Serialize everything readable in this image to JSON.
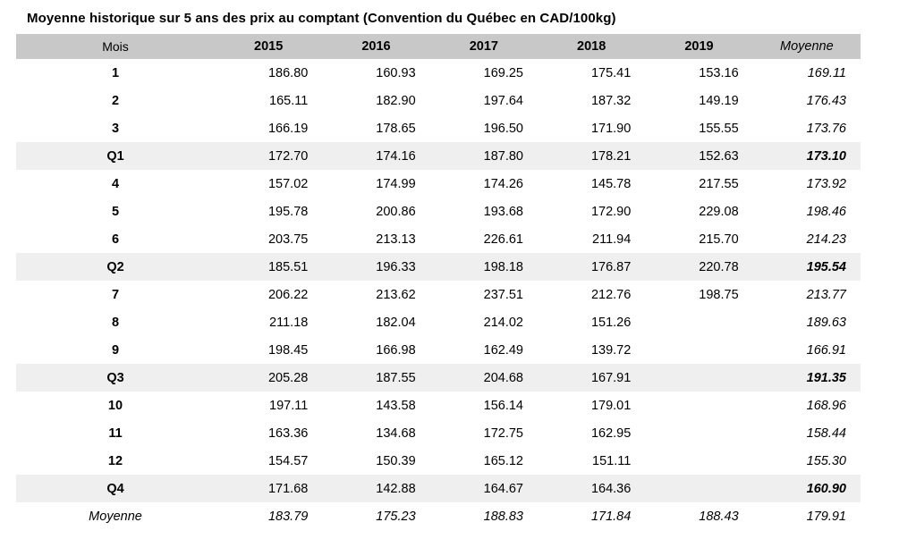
{
  "title": "Moyenne historique sur 5 ans des prix au comptant (Convention du Québec en CAD/100kg)",
  "colors": {
    "header_background": "#c8c8c8",
    "quarter_row_background": "#efefef"
  },
  "chart_data": {
    "type": "table",
    "title": "Moyenne historique sur 5 ans des prix au comptant (Convention du Québec en CAD/100kg)",
    "columns": [
      "Mois",
      "2015",
      "2016",
      "2017",
      "2018",
      "2019",
      "Moyenne"
    ],
    "rows": [
      {
        "label": "1",
        "kind": "month",
        "values": [
          "186.80",
          "160.93",
          "169.25",
          "175.41",
          "153.16",
          "169.11"
        ]
      },
      {
        "label": "2",
        "kind": "month",
        "values": [
          "165.11",
          "182.90",
          "197.64",
          "187.32",
          "149.19",
          "176.43"
        ]
      },
      {
        "label": "3",
        "kind": "month",
        "values": [
          "166.19",
          "178.65",
          "196.50",
          "171.90",
          "155.55",
          "173.76"
        ]
      },
      {
        "label": "Q1",
        "kind": "quarter",
        "values": [
          "172.70",
          "174.16",
          "187.80",
          "178.21",
          "152.63",
          "173.10"
        ]
      },
      {
        "label": "4",
        "kind": "month",
        "values": [
          "157.02",
          "174.99",
          "174.26",
          "145.78",
          "217.55",
          "173.92"
        ]
      },
      {
        "label": "5",
        "kind": "month",
        "values": [
          "195.78",
          "200.86",
          "193.68",
          "172.90",
          "229.08",
          "198.46"
        ]
      },
      {
        "label": "6",
        "kind": "month",
        "values": [
          "203.75",
          "213.13",
          "226.61",
          "211.94",
          "215.70",
          "214.23"
        ]
      },
      {
        "label": "Q2",
        "kind": "quarter",
        "values": [
          "185.51",
          "196.33",
          "198.18",
          "176.87",
          "220.78",
          "195.54"
        ]
      },
      {
        "label": "7",
        "kind": "month",
        "values": [
          "206.22",
          "213.62",
          "237.51",
          "212.76",
          "198.75",
          "213.77"
        ]
      },
      {
        "label": "8",
        "kind": "month",
        "values": [
          "211.18",
          "182.04",
          "214.02",
          "151.26",
          "",
          "189.63"
        ]
      },
      {
        "label": "9",
        "kind": "month",
        "values": [
          "198.45",
          "166.98",
          "162.49",
          "139.72",
          "",
          "166.91"
        ]
      },
      {
        "label": "Q3",
        "kind": "quarter",
        "values": [
          "205.28",
          "187.55",
          "204.68",
          "167.91",
          "",
          "191.35"
        ]
      },
      {
        "label": "10",
        "kind": "month",
        "values": [
          "197.11",
          "143.58",
          "156.14",
          "179.01",
          "",
          "168.96"
        ]
      },
      {
        "label": "11",
        "kind": "month",
        "values": [
          "163.36",
          "134.68",
          "172.75",
          "162.95",
          "",
          "158.44"
        ]
      },
      {
        "label": "12",
        "kind": "month",
        "values": [
          "154.57",
          "150.39",
          "165.12",
          "151.11",
          "",
          "155.30"
        ]
      },
      {
        "label": "Q4",
        "kind": "quarter",
        "values": [
          "171.68",
          "142.88",
          "164.67",
          "164.36",
          "",
          "160.90"
        ]
      },
      {
        "label": "Moyenne",
        "kind": "average",
        "values": [
          "183.79",
          "175.23",
          "188.83",
          "171.84",
          "188.43",
          "179.91"
        ]
      }
    ]
  }
}
